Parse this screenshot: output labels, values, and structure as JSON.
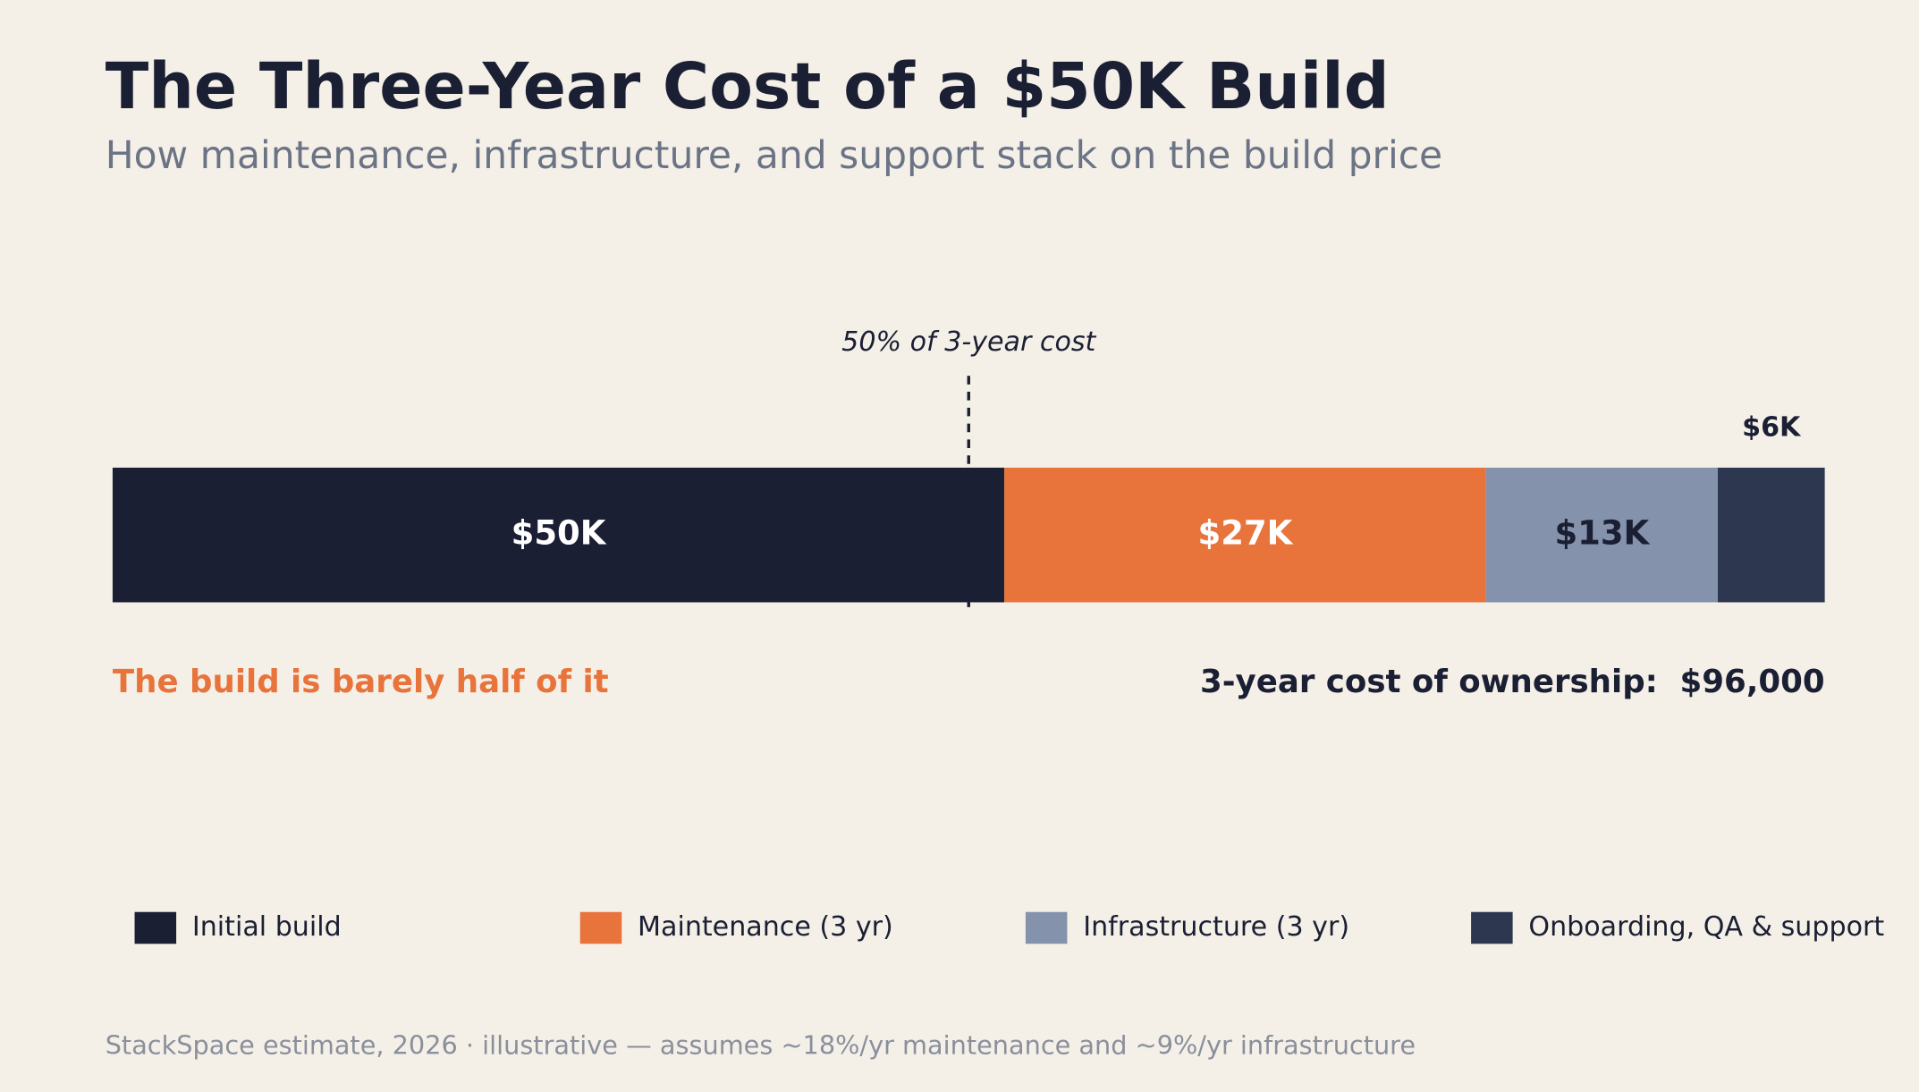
{
  "chart_data": {
    "type": "stacked-bar",
    "title": "The Three-Year Cost of a $50K Build",
    "subtitle": "How maintenance, infrastructure, and support stack on the build price",
    "orientation": "horizontal",
    "xlim": [
      0,
      96
    ],
    "series": [
      {
        "name": "Initial build",
        "color": "#1b1f33",
        "label_color": "#ffffff",
        "values": [
          50
        ],
        "value_labels": [
          "$50K"
        ]
      },
      {
        "name": "Maintenance (3 yr)",
        "color": "#e8743b",
        "label_color": "#ffffff",
        "values": [
          27
        ],
        "value_labels": [
          "$27K"
        ]
      },
      {
        "name": "Infrastructure (3 yr)",
        "color": "#8492ab",
        "label_color": "#1b1f33",
        "values": [
          13
        ],
        "value_labels": [
          "$13K"
        ]
      },
      {
        "name": "Onboarding, QA & support",
        "color": "#2e3750",
        "label_color": "#1b1f33",
        "values": [
          6
        ],
        "value_labels": [
          "$6K"
        ]
      }
    ],
    "marker": {
      "value": 48,
      "label": "50% of 3-year cost"
    },
    "callout": "The build is barely half of it",
    "total_text": "3-year cost of ownership:",
    "total_value_label": "$96,000",
    "footnote": "StackSpace estimate, 2026  ·  illustrative — assumes ~18%/yr maintenance and ~9%/yr infrastructure"
  }
}
